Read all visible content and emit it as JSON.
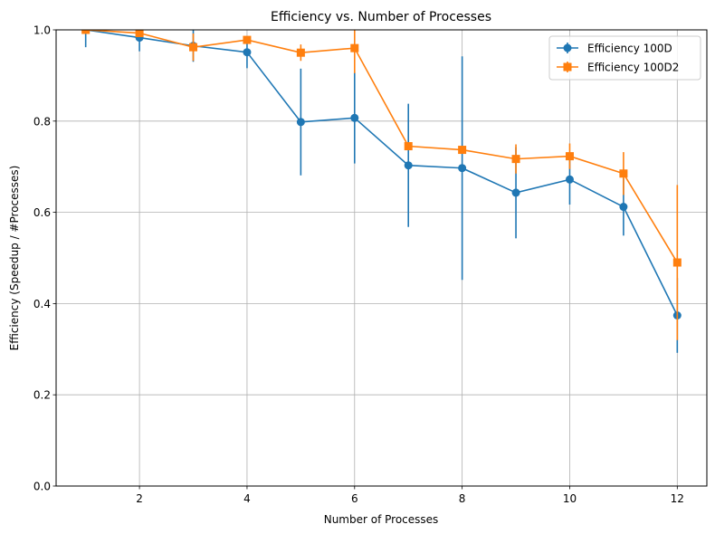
{
  "chart_data": {
    "type": "line",
    "title": "Efficiency vs. Number of Processes",
    "xlabel": "Number of Processes",
    "ylabel": "Efficiency (Speedup / #Processes)",
    "xlim": [
      0.45,
      12.55
    ],
    "ylim": [
      0.0,
      1.0
    ],
    "xticks": [
      2,
      4,
      6,
      8,
      10,
      12
    ],
    "yticks": [
      0.0,
      0.2,
      0.4,
      0.6,
      0.8,
      1.0
    ],
    "xtick_labels": [
      "2",
      "4",
      "6",
      "8",
      "10",
      "12"
    ],
    "ytick_labels": [
      "0.0",
      "0.2",
      "0.4",
      "0.6",
      "0.8",
      "1.0"
    ],
    "grid": true,
    "legend_position": "top-right",
    "x": [
      1,
      2,
      3,
      4,
      5,
      6,
      7,
      8,
      9,
      10,
      11,
      12
    ],
    "series": [
      {
        "name": "Efficiency 100D",
        "color": "#1f77b4",
        "marker": "circle",
        "values": [
          1.0,
          0.983,
          0.965,
          0.951,
          0.798,
          0.807,
          0.703,
          0.697,
          0.643,
          0.672,
          0.612,
          0.374
        ],
        "errors": [
          0.038,
          0.03,
          0.035,
          0.035,
          0.117,
          0.1,
          0.135,
          0.245,
          0.1,
          0.055,
          0.063,
          0.082
        ]
      },
      {
        "name": "Efficiency 100D2",
        "color": "#ff7f0e",
        "marker": "square",
        "values": [
          1.0,
          0.993,
          0.962,
          0.978,
          0.95,
          0.96,
          0.745,
          0.737,
          0.717,
          0.723,
          0.685,
          0.49
        ],
        "errors": [
          0.0,
          0.008,
          0.03,
          0.0,
          0.018,
          0.055,
          0.0,
          0.0,
          0.032,
          0.028,
          0.047,
          0.17
        ]
      }
    ]
  }
}
